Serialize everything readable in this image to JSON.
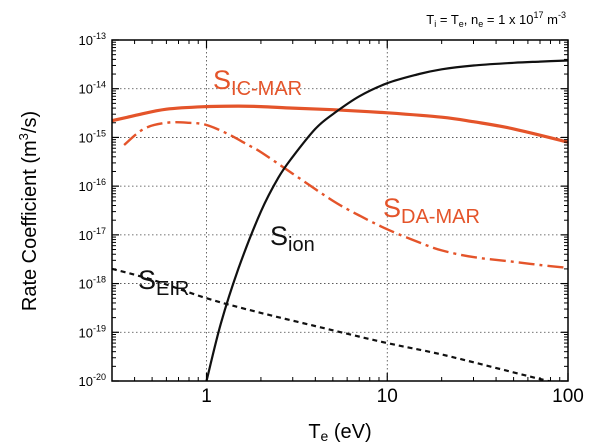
{
  "chart_data": {
    "type": "line",
    "title": "",
    "xlabel": {
      "main": "T",
      "sub": "e",
      "rest": " (eV)"
    },
    "ylabel": {
      "main": "Rate Coefficient (m",
      "sup": "3",
      "rest": "/s)"
    },
    "xscale": "log",
    "yscale": "log",
    "xlim": [
      0.3,
      100
    ],
    "ylim": [
      1e-20,
      1e-13
    ],
    "grid": true,
    "x_ticks": [
      {
        "value": 1,
        "label": "1"
      },
      {
        "value": 10,
        "label": "10"
      },
      {
        "value": 100,
        "label": "100"
      }
    ],
    "y_ticks": [
      {
        "value": 1e-13,
        "exp": "-13"
      },
      {
        "value": 1e-14,
        "exp": "-14"
      },
      {
        "value": 1e-15,
        "exp": "-15"
      },
      {
        "value": 1e-16,
        "exp": "-16"
      },
      {
        "value": 1e-17,
        "exp": "-17"
      },
      {
        "value": 1e-18,
        "exp": "-18"
      },
      {
        "value": 1e-19,
        "exp": "-19"
      },
      {
        "value": 1e-20,
        "exp": "-20"
      }
    ],
    "conditions": {
      "ti": "T",
      "ti_sub": "i",
      "eq": " = ",
      "te": "T",
      "te_sub": "e",
      "comma": ",  ",
      "ne": "n",
      "ne_sub": "e",
      "ne_val": " = 1 x 10",
      "ne_exp": "17",
      "ne_unit": " m",
      "ne_unit_exp": "-3"
    },
    "series": [
      {
        "key": "ic_mar",
        "label_main": "S",
        "label_sub": "IC-MAR",
        "color": "#e4542a",
        "style": "solid",
        "width": 3.2,
        "x": [
          0.3,
          0.4,
          0.6,
          1.0,
          1.5,
          2.0,
          3.0,
          5.0,
          10,
          20,
          30,
          50,
          100
        ],
        "y": [
          2.2e-15,
          2.8e-15,
          3.8e-15,
          4.3e-15,
          4.4e-15,
          4.3e-15,
          4e-15,
          3.7e-15,
          3.2e-15,
          2.6e-15,
          2.1e-15,
          1.5e-15,
          8e-16
        ]
      },
      {
        "key": "da_mar",
        "label_main": "S",
        "label_sub": "DA-MAR",
        "color": "#e4542a",
        "style": "dashdot",
        "width": 2.4,
        "x": [
          0.35,
          0.45,
          0.6,
          0.8,
          1.0,
          1.3,
          1.7,
          2.0,
          3.0,
          5.0,
          7.0,
          10,
          15,
          20,
          30,
          50,
          70,
          100
        ],
        "y": [
          7e-16,
          1.5e-15,
          2e-15,
          2e-15,
          1.8e-15,
          1.2e-15,
          7e-16,
          5e-16,
          1.8e-16,
          5e-17,
          2.5e-17,
          1.3e-17,
          7e-18,
          4.8e-18,
          3.5e-18,
          2.8e-18,
          2.4e-18,
          2.1e-18
        ]
      },
      {
        "key": "ion",
        "label_main": "S",
        "label_sub": "ion",
        "color": "#111111",
        "style": "solid",
        "width": 2.2,
        "x": [
          1.0,
          1.2,
          1.5,
          2.0,
          2.5,
          3.0,
          4.0,
          5.0,
          7.0,
          10,
          15,
          20,
          30,
          50,
          70,
          100
        ],
        "y": [
          1e-20,
          1.5e-19,
          2e-18,
          3e-17,
          1.5e-16,
          4e-16,
          1.5e-15,
          3e-15,
          7e-15,
          1.3e-14,
          2e-14,
          2.5e-14,
          3e-14,
          3.4e-14,
          3.6e-14,
          3.8e-14
        ]
      },
      {
        "key": "eir",
        "label_main": "S",
        "label_sub": "EIR",
        "color": "#111111",
        "style": "dashed",
        "width": 2.2,
        "x": [
          0.3,
          0.5,
          1.0,
          2.0,
          5.0,
          10,
          20,
          50,
          70,
          100
        ],
        "y": [
          2e-18,
          1.2e-18,
          5e-19,
          2.5e-19,
          1.1e-19,
          6e-20,
          3.5e-20,
          1.5e-20,
          1.1e-20,
          8e-21
        ]
      }
    ]
  }
}
